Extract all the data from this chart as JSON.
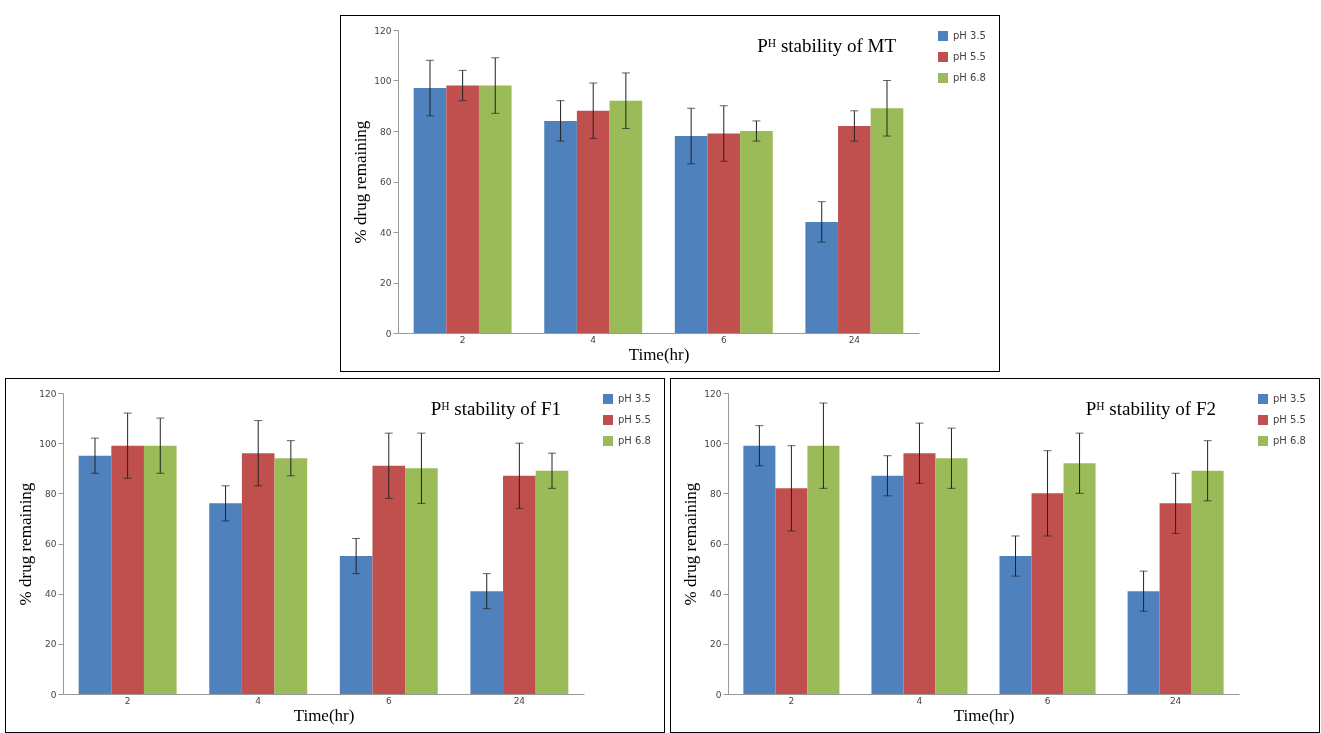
{
  "chart_data": [
    {
      "type": "bar",
      "title": "Pᴴ stability of MT",
      "xlabel": "Time(hr)",
      "ylabel": "% drug remaining",
      "categories": [
        "2",
        "4",
        "6",
        "24"
      ],
      "ylim": [
        0,
        120
      ],
      "yticks": [
        0,
        20,
        40,
        60,
        80,
        100,
        120
      ],
      "legend": "right",
      "grid": false,
      "series": [
        {
          "name": "pH 3.5",
          "color": "#4f81bd",
          "values": [
            97,
            84,
            78,
            44
          ],
          "errors": [
            11,
            8,
            11,
            8
          ]
        },
        {
          "name": "pH 5.5",
          "color": "#c0504d",
          "values": [
            98,
            88,
            79,
            82
          ],
          "errors": [
            6,
            11,
            11,
            6
          ]
        },
        {
          "name": "pH 6.8",
          "color": "#9bbb59",
          "values": [
            98,
            92,
            80,
            89
          ],
          "errors": [
            11,
            11,
            4,
            11
          ]
        }
      ]
    },
    {
      "type": "bar",
      "title": "Pᴴ stability of F1",
      "xlabel": "Time(hr)",
      "ylabel": "% drug remaining",
      "categories": [
        "2",
        "4",
        "6",
        "24"
      ],
      "ylim": [
        0,
        120
      ],
      "yticks": [
        0,
        20,
        40,
        60,
        80,
        100,
        120
      ],
      "legend": "right",
      "grid": false,
      "series": [
        {
          "name": "pH 3.5",
          "color": "#4f81bd",
          "values": [
            95,
            76,
            55,
            41
          ],
          "errors": [
            7,
            7,
            7,
            7
          ]
        },
        {
          "name": "pH 5.5",
          "color": "#c0504d",
          "values": [
            99,
            96,
            91,
            87
          ],
          "errors": [
            13,
            13,
            13,
            13
          ]
        },
        {
          "name": "pH 6.8",
          "color": "#9bbb59",
          "values": [
            99,
            94,
            90,
            89
          ],
          "errors": [
            11,
            7,
            14,
            7
          ]
        }
      ]
    },
    {
      "type": "bar",
      "title": "Pᴴ stability of F2",
      "xlabel": "Time(hr)",
      "ylabel": "% drug remaining",
      "categories": [
        "2",
        "4",
        "6",
        "24"
      ],
      "ylim": [
        0,
        120
      ],
      "yticks": [
        0,
        20,
        40,
        60,
        80,
        100,
        120
      ],
      "legend": "right",
      "grid": false,
      "series": [
        {
          "name": "pH 3.5",
          "color": "#4f81bd",
          "values": [
            99,
            87,
            55,
            41
          ],
          "errors": [
            8,
            8,
            8,
            8
          ]
        },
        {
          "name": "pH 5.5",
          "color": "#c0504d",
          "values": [
            82,
            96,
            80,
            76
          ],
          "errors": [
            17,
            12,
            17,
            12
          ]
        },
        {
          "name": "pH 6.8",
          "color": "#9bbb59",
          "values": [
            99,
            94,
            92,
            89
          ],
          "errors": [
            17,
            12,
            12,
            12
          ]
        }
      ]
    }
  ]
}
